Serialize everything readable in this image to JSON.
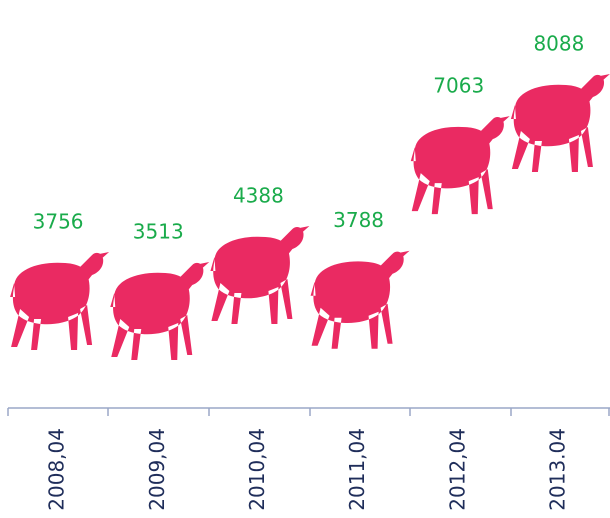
{
  "chart_data": {
    "type": "pictograph",
    "categories": [
      "2008,04",
      "2009,04",
      "2010,04",
      "2011,04",
      "2012,04",
      "2013.04"
    ],
    "values": [
      3756,
      3513,
      4388,
      3788,
      7063,
      8088
    ],
    "color": "#ea2a62",
    "label_color": "#1aab4b"
  }
}
